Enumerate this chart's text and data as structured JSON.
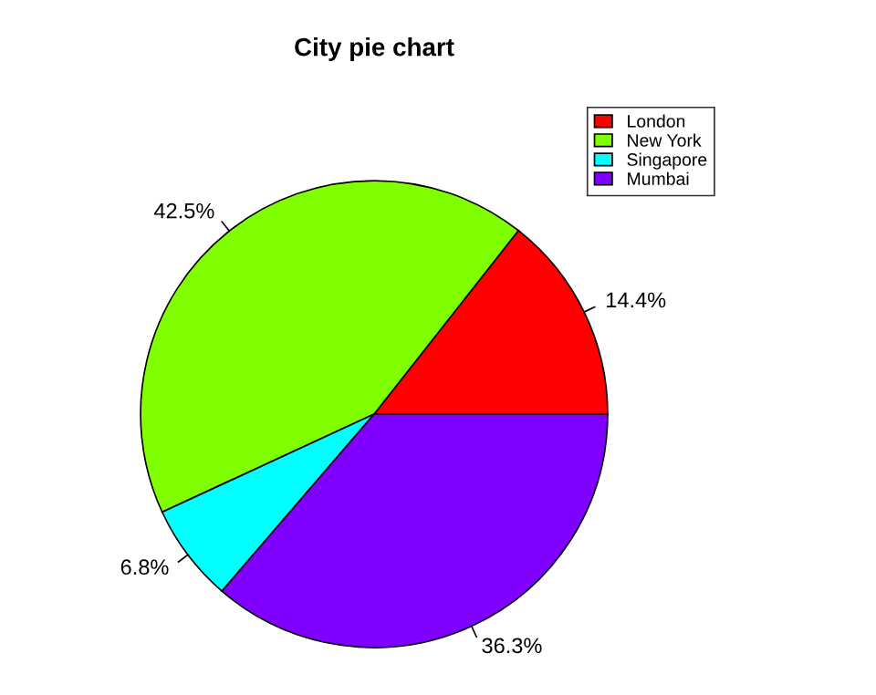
{
  "chart_data": {
    "type": "pie",
    "title": "City pie chart",
    "categories": [
      "London",
      "New York",
      "Singapore",
      "Mumbai"
    ],
    "values": [
      14.4,
      42.5,
      6.8,
      36.3
    ],
    "value_labels": [
      "14.4%",
      "42.5%",
      "6.8%",
      "36.3%"
    ],
    "colors": [
      "#ff0000",
      "#80ff00",
      "#00ffff",
      "#8000ff"
    ],
    "legend": "top right"
  }
}
